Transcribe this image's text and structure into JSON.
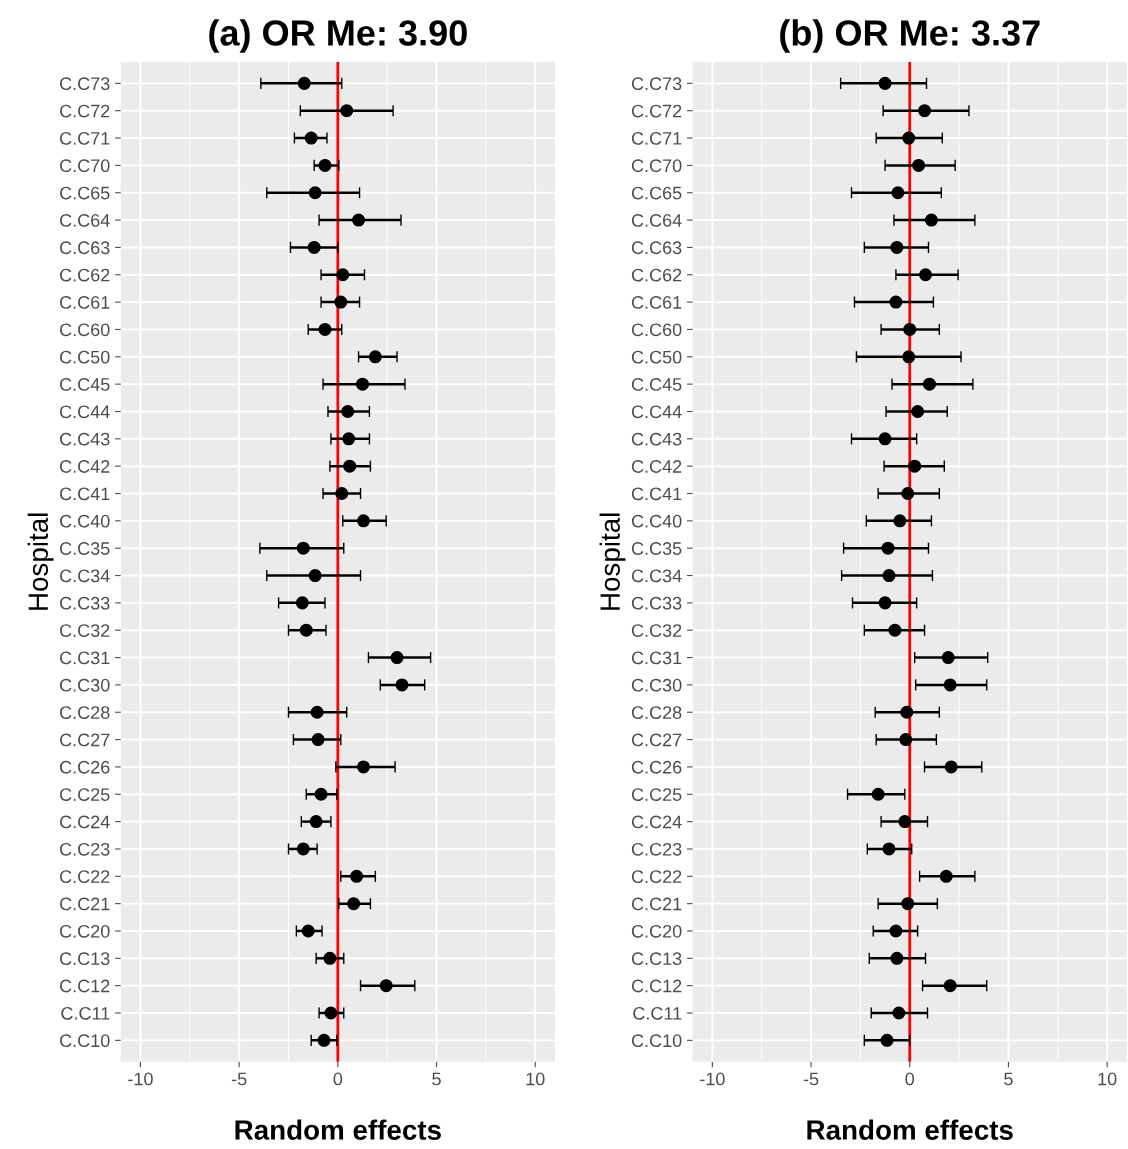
{
  "chart_data": [
    {
      "type": "scatter",
      "orientation": "horizontal",
      "title": "(a) OR Me: 3.90",
      "xlabel": "Random effects",
      "ylabel": "Hospital",
      "categories": [
        "C.C73",
        "C.C72",
        "C.C71",
        "C.C70",
        "C.C65",
        "C.C64",
        "C.C63",
        "C.C62",
        "C.C61",
        "C.C60",
        "C.C50",
        "C.C45",
        "C.C44",
        "C.C43",
        "C.C42",
        "C.C41",
        "C.C40",
        "C.C35",
        "C.C34",
        "C.C33",
        "C.C32",
        "C.C31",
        "C.C30",
        "C.C28",
        "C.C27",
        "C.C26",
        "C.C25",
        "C.C24",
        "C.C23",
        "C.C22",
        "C.C21",
        "C.C20",
        "C.C13",
        "C.C12",
        "C.C11",
        "C.C10"
      ],
      "series": [
        {
          "color": "#000000",
          "values": [
            -1.7,
            0.45,
            -1.35,
            -0.65,
            -1.15,
            1.05,
            -1.2,
            0.25,
            0.15,
            -0.65,
            1.9,
            1.25,
            0.5,
            0.55,
            0.6,
            0.2,
            1.3,
            -1.75,
            -1.15,
            -1.8,
            -1.6,
            3.0,
            3.25,
            -1.05,
            -1.0,
            1.3,
            -0.85,
            -1.1,
            -1.75,
            0.95,
            0.8,
            -1.5,
            -0.4,
            2.45,
            -0.35,
            -0.7
          ],
          "errors": [
            [
              -3.9,
              0.2
            ],
            [
              -1.9,
              2.8
            ],
            [
              -2.2,
              -0.55
            ],
            [
              -1.2,
              0.05
            ],
            [
              -3.6,
              1.1
            ],
            [
              -0.95,
              3.2
            ],
            [
              -2.4,
              0
            ],
            [
              -0.85,
              1.35
            ],
            [
              -0.85,
              1.1
            ],
            [
              -1.5,
              0.2
            ],
            [
              1.05,
              3.0
            ],
            [
              -0.75,
              3.4
            ],
            [
              -0.5,
              1.6
            ],
            [
              -0.35,
              1.6
            ],
            [
              -0.4,
              1.65
            ],
            [
              -0.75,
              1.15
            ],
            [
              0.25,
              2.45
            ],
            [
              -3.95,
              0.3
            ],
            [
              -3.6,
              1.15
            ],
            [
              -3.0,
              -0.65
            ],
            [
              -2.5,
              -0.6
            ],
            [
              1.55,
              4.7
            ],
            [
              2.15,
              4.4
            ],
            [
              -2.5,
              0.45
            ],
            [
              -2.25,
              0.15
            ],
            [
              -0.1,
              2.9
            ],
            [
              -1.6,
              -0.05
            ],
            [
              -1.85,
              -0.35
            ],
            [
              -2.5,
              -1.05
            ],
            [
              0.15,
              1.9
            ],
            [
              0.05,
              1.65
            ],
            [
              -2.1,
              -0.8
            ],
            [
              -1.1,
              0.3
            ],
            [
              1.15,
              3.9
            ],
            [
              -0.95,
              0.3
            ],
            [
              -1.35,
              -0.05
            ]
          ]
        }
      ],
      "xlim": [
        -11,
        11
      ],
      "xticks": [
        -10,
        -5,
        0,
        5,
        10
      ],
      "grid": true,
      "marker": "circle",
      "ref_lines": [
        {
          "axis": "x",
          "value": 0,
          "color": "#ff0000"
        }
      ]
    },
    {
      "type": "scatter",
      "orientation": "horizontal",
      "title": "(b) OR Me: 3.37",
      "xlabel": "Random effects",
      "ylabel": "Hospital",
      "categories": [
        "C.C73",
        "C.C72",
        "C.C71",
        "C.C70",
        "C.C65",
        "C.C64",
        "C.C63",
        "C.C62",
        "C.C61",
        "C.C60",
        "C.C50",
        "C.C45",
        "C.C44",
        "C.C43",
        "C.C42",
        "C.C41",
        "C.C40",
        "C.C35",
        "C.C34",
        "C.C33",
        "C.C32",
        "C.C31",
        "C.C30",
        "C.C28",
        "C.C27",
        "C.C26",
        "C.C25",
        "C.C24",
        "C.C23",
        "C.C22",
        "C.C21",
        "C.C20",
        "C.C13",
        "C.C12",
        "C.C11",
        "C.C10"
      ],
      "series": [
        {
          "color": "#000000",
          "values": [
            -1.25,
            0.75,
            -0.05,
            0.45,
            -0.6,
            1.1,
            -0.65,
            0.8,
            -0.7,
            0,
            -0.05,
            1.0,
            0.4,
            -1.25,
            0.25,
            -0.1,
            -0.5,
            -1.1,
            -1.05,
            -1.25,
            -0.75,
            1.95,
            2.05,
            -0.15,
            -0.2,
            2.1,
            -1.6,
            -0.25,
            -1.05,
            1.85,
            -0.1,
            -0.7,
            -0.65,
            2.05,
            -0.55,
            -1.15
          ],
          "errors": [
            [
              -3.5,
              0.85
            ],
            [
              -1.35,
              3.0
            ],
            [
              -1.7,
              1.65
            ],
            [
              -1.25,
              2.3
            ],
            [
              -2.95,
              1.6
            ],
            [
              -0.8,
              3.3
            ],
            [
              -2.3,
              0.95
            ],
            [
              -0.7,
              2.45
            ],
            [
              -2.8,
              1.2
            ],
            [
              -1.45,
              1.5
            ],
            [
              -2.7,
              2.6
            ],
            [
              -0.9,
              3.2
            ],
            [
              -1.2,
              1.9
            ],
            [
              -2.95,
              0.35
            ],
            [
              -1.3,
              1.75
            ],
            [
              -1.6,
              1.5
            ],
            [
              -2.2,
              1.1
            ],
            [
              -3.35,
              0.95
            ],
            [
              -3.45,
              1.15
            ],
            [
              -2.9,
              0.35
            ],
            [
              -2.3,
              0.75
            ],
            [
              0.25,
              3.95
            ],
            [
              0.3,
              3.9
            ],
            [
              -1.75,
              1.5
            ],
            [
              -1.7,
              1.35
            ],
            [
              0.75,
              3.65
            ],
            [
              -3.15,
              -0.25
            ],
            [
              -1.45,
              0.9
            ],
            [
              -2.15,
              0.1
            ],
            [
              0.5,
              3.3
            ],
            [
              -1.6,
              1.4
            ],
            [
              -1.85,
              0.4
            ],
            [
              -2.05,
              0.8
            ],
            [
              0.65,
              3.9
            ],
            [
              -1.95,
              0.9
            ],
            [
              -2.3,
              0.0
            ]
          ]
        }
      ],
      "xlim": [
        -11,
        11
      ],
      "xticks": [
        -10,
        -5,
        0,
        5,
        10
      ],
      "grid": true,
      "marker": "circle",
      "ref_lines": [
        {
          "axis": "x",
          "value": 0,
          "color": "#ff0000"
        }
      ]
    }
  ]
}
